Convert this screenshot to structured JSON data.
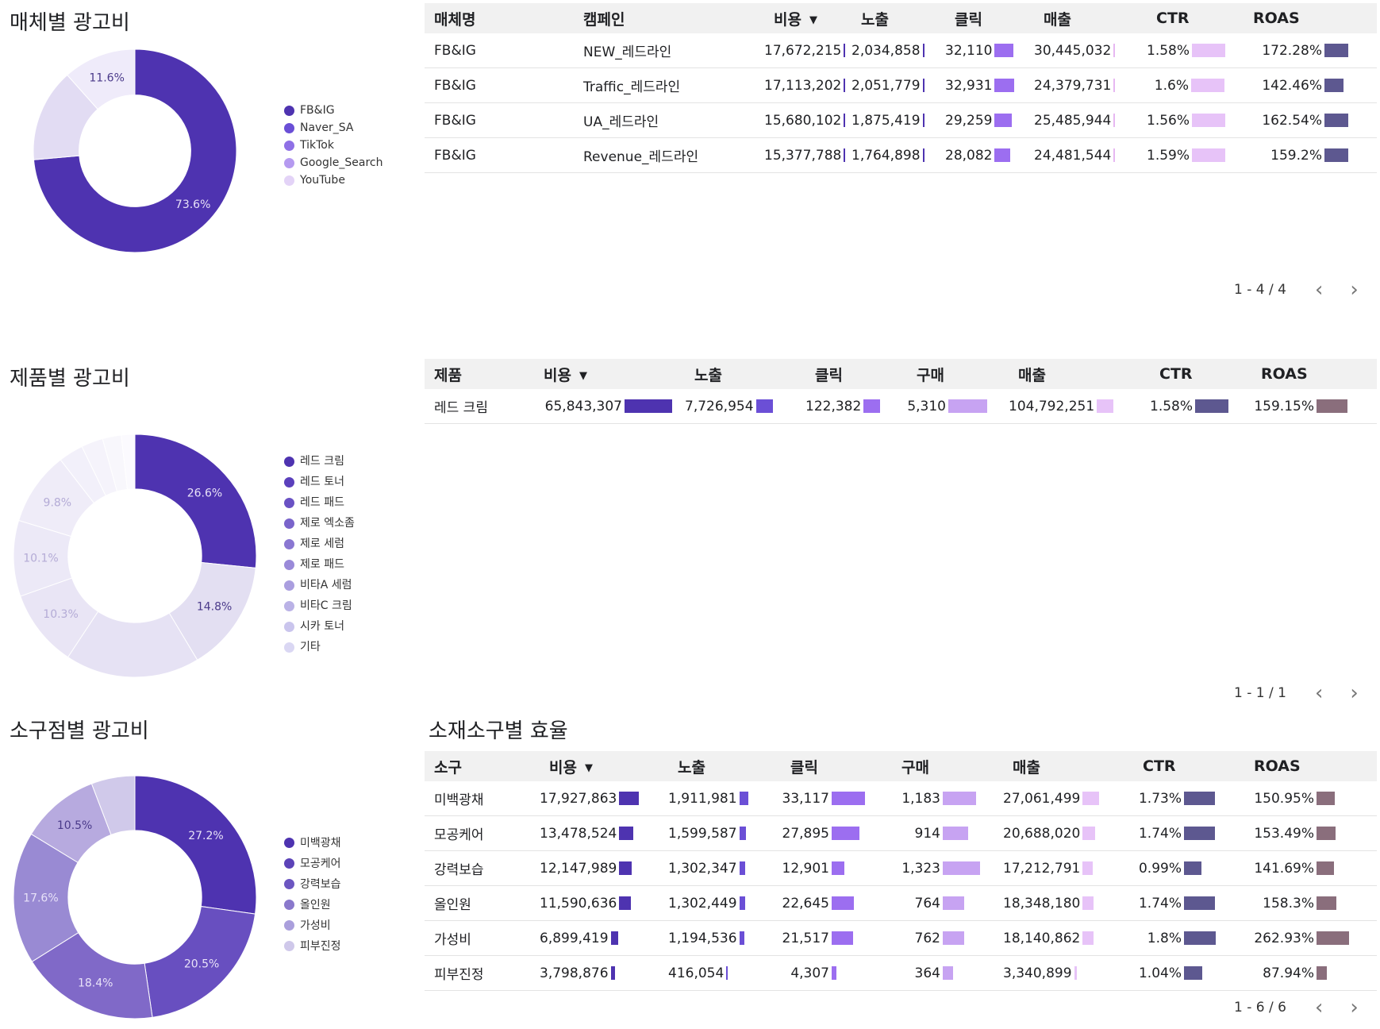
{
  "sections": [
    {
      "title": "매체별 광고비",
      "chart_data": {
        "type": "pie",
        "title": "매체별 광고비",
        "categories": [
          "FB&IG",
          "Naver_SA",
          "TikTok",
          "Google_Search",
          "YouTube"
        ],
        "values": [
          73.6,
          14.8,
          11.6,
          0,
          0
        ],
        "slice_labels": [
          "73.6%",
          "",
          "11.6%",
          "",
          ""
        ],
        "colors": [
          "#4e33b0",
          "#e2dcf3",
          "#efebfa",
          "#f5f3fc",
          "#faf9fe"
        ],
        "legend_colors": [
          "#4e33b0",
          "#6a4fd6",
          "#8f70e6",
          "#b59af0",
          "#e3d3f7"
        ],
        "legend_position": "right"
      }
    },
    {
      "title": "제품별 광고비",
      "chart_data": {
        "type": "pie",
        "title": "제품별 광고비",
        "categories": [
          "레드 크림",
          "레드 토너",
          "레드 패드",
          "제로 엑소좀",
          "제로 세럼",
          "제로 패드",
          "비타A 세럼",
          "비타C 크림",
          "시카 토너",
          "기타"
        ],
        "values": [
          26.6,
          14.8,
          17.9,
          10.3,
          10.1,
          9.8,
          3.3,
          2.9,
          2.5,
          1.8
        ],
        "slice_labels": [
          "26.6%",
          "14.8%",
          "",
          "10.3%",
          "10.1%",
          "9.8%",
          "",
          "",
          "",
          ""
        ],
        "colors": [
          "#4e33b0",
          "#e3dff2",
          "#e6e2f4",
          "#e9e5f5",
          "#ece9f7",
          "#efecf8",
          "#f2f0fa",
          "#f5f3fb",
          "#f8f7fc",
          "#fbfafe"
        ],
        "legend_colors": [
          "#4e33b0",
          "#5b40bc",
          "#6a52c4",
          "#7a64cb",
          "#8a77d2",
          "#9a8ad9",
          "#aa9edf",
          "#bab2e6",
          "#cac5ed",
          "#dad7f3"
        ],
        "legend_position": "right"
      }
    },
    {
      "title": "소구점별 광고비",
      "chart_data": {
        "type": "pie",
        "title": "소구점별 광고비",
        "categories": [
          "미백광채",
          "모공케어",
          "강력보습",
          "올인원",
          "가성비",
          "피부진정"
        ],
        "values": [
          27.2,
          20.5,
          18.4,
          17.6,
          10.5,
          5.8
        ],
        "slice_labels": [
          "27.2%",
          "20.5%",
          "18.4%",
          "17.6%",
          "10.5%",
          ""
        ],
        "colors": [
          "#4e33b0",
          "#684fc0",
          "#8069c8",
          "#998ad3",
          "#b7aadf",
          "#d0c9ea"
        ],
        "legend_colors": [
          "#4e33b0",
          "#5c43b8",
          "#6c56c1",
          "#8a79cc",
          "#aa9fdc",
          "#cfc8ea"
        ],
        "legend_position": "right"
      }
    }
  ],
  "tables": [
    {
      "columns": [
        "매체명",
        "캠페인",
        "비용",
        "노출",
        "클릭",
        "매출",
        "CTR",
        "ROAS"
      ],
      "sort_column": 2,
      "rows": [
        [
          "FB&IG",
          "NEW_레드라인",
          "17,672,215",
          "2,034,858",
          "32,110",
          "30,445,032",
          "1.58%",
          "172.28%"
        ],
        [
          "FB&IG",
          "Traffic_레드라인",
          "17,113,202",
          "2,051,779",
          "32,931",
          "24,379,731",
          "1.6%",
          "142.46%"
        ],
        [
          "FB&IG",
          "UA_레드라인",
          "15,680,102",
          "1,875,419",
          "29,259",
          "25,485,944",
          "1.56%",
          "162.54%"
        ],
        [
          "FB&IG",
          "Revenue_레드라인",
          "15,377,788",
          "1,764,898",
          "28,082",
          "24,481,544",
          "1.59%",
          "159.2%"
        ]
      ],
      "bar_fractions": [
        [
          null,
          null,
          0.02,
          0.02,
          0.4,
          0.02,
          0.7,
          0.5
        ],
        [
          null,
          null,
          0.02,
          0.02,
          0.42,
          0.02,
          0.7,
          0.4
        ],
        [
          null,
          null,
          0.02,
          0.02,
          0.36,
          0.02,
          0.7,
          0.5
        ],
        [
          null,
          null,
          0.02,
          0.02,
          0.34,
          0.02,
          0.7,
          0.5
        ]
      ],
      "bar_colors": [
        null,
        null,
        "#4e33b0",
        "#4e33b0",
        "#9c6ef0",
        "#e7b8f2",
        "#e7c3f8",
        "#5d5890"
      ],
      "pager": "1 - 4 / 4"
    },
    {
      "columns": [
        "제품",
        "비용",
        "노출",
        "클릭",
        "구매",
        "매출",
        "CTR",
        "ROAS"
      ],
      "sort_column": 1,
      "rows": [
        [
          "레드 크림",
          "65,843,307",
          "7,726,954",
          "122,382",
          "5,310",
          "104,792,251",
          "1.58%",
          "159.15%"
        ]
      ],
      "bar_fractions": [
        [
          null,
          0.85,
          0.3,
          0.3,
          0.7,
          0.3,
          0.6,
          0.55
        ]
      ],
      "bar_colors": [
        null,
        "#4e33b0",
        "#6b4fd6",
        "#9c6ef0",
        "#c7a3f2",
        "#e7c3f8",
        "#5d5890",
        "#8a6e7c"
      ],
      "pager": "1 - 1 / 1"
    },
    {
      "title": "소재소구별 효율",
      "columns": [
        "소구",
        "비용",
        "노출",
        "클릭",
        "구매",
        "매출",
        "CTR",
        "ROAS"
      ],
      "sort_column": 1,
      "rows": [
        [
          "미백광채",
          "17,927,863",
          "1,911,981",
          "33,117",
          "1,183",
          "27,061,499",
          "1.73%",
          "150.95%"
        ],
        [
          "모공케어",
          "13,478,524",
          "1,599,587",
          "27,895",
          "914",
          "20,688,020",
          "1.74%",
          "153.49%"
        ],
        [
          "강력보습",
          "12,147,989",
          "1,302,347",
          "12,901",
          "1,323",
          "17,212,791",
          "0.99%",
          "141.69%"
        ],
        [
          "올인원",
          "11,590,636",
          "1,302,449",
          "22,645",
          "764",
          "18,348,180",
          "1.74%",
          "158.3%"
        ],
        [
          "가성비",
          "6,899,419",
          "1,194,536",
          "21,517",
          "762",
          "18,140,862",
          "1.8%",
          "262.93%"
        ],
        [
          "피부진정",
          "3,798,876",
          "416,054",
          "4,307",
          "364",
          "3,340,899",
          "1.04%",
          "87.94%"
        ]
      ],
      "bar_fractions": [
        [
          null,
          0.35,
          0.15,
          0.6,
          0.6,
          0.3,
          0.55,
          0.33
        ],
        [
          null,
          0.26,
          0.12,
          0.5,
          0.46,
          0.23,
          0.55,
          0.34
        ],
        [
          null,
          0.23,
          0.1,
          0.23,
          0.67,
          0.18,
          0.32,
          0.31
        ],
        [
          null,
          0.22,
          0.1,
          0.4,
          0.39,
          0.2,
          0.55,
          0.35
        ],
        [
          null,
          0.13,
          0.09,
          0.38,
          0.38,
          0.2,
          0.57,
          0.58
        ],
        [
          null,
          0.07,
          0.03,
          0.08,
          0.18,
          0.04,
          0.33,
          0.19
        ]
      ],
      "bar_colors": [
        null,
        "#4e33b0",
        "#6b4fd6",
        "#9c6ef0",
        "#c7a3f2",
        "#e7c3f8",
        "#5d5890",
        "#8a6e7c"
      ],
      "pager": "1 - 6 / 6"
    }
  ]
}
